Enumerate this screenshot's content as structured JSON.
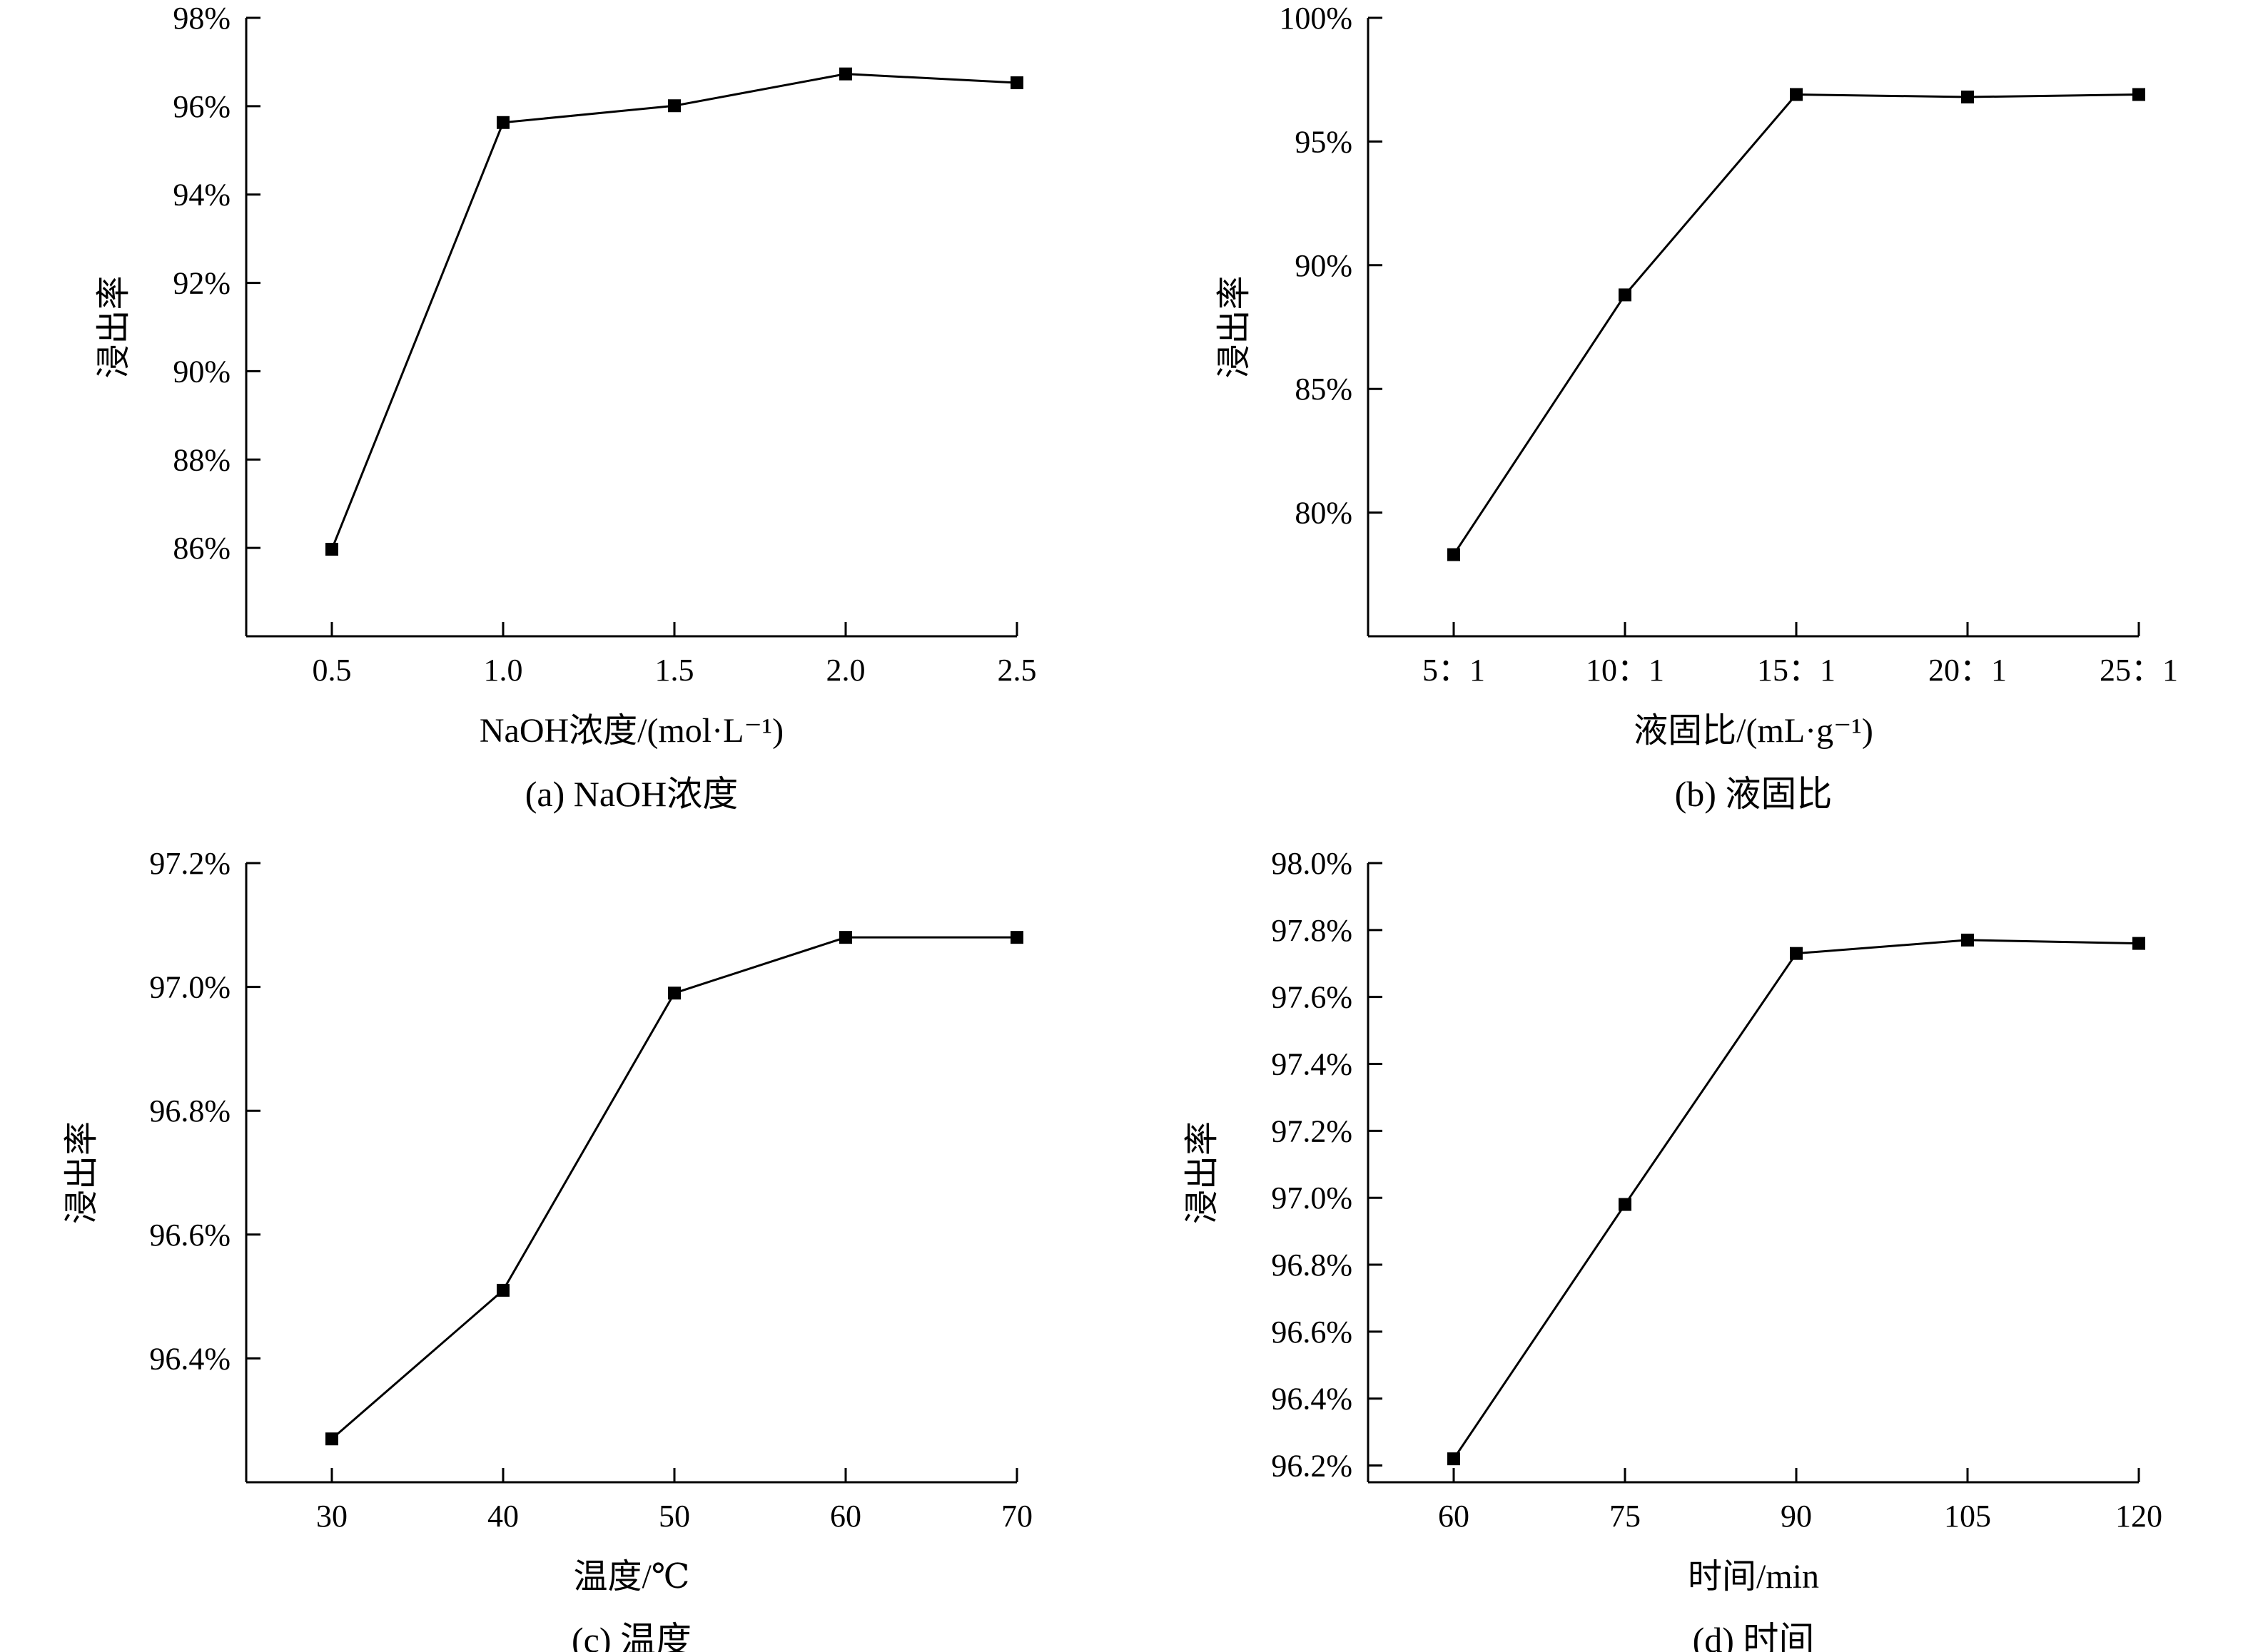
{
  "chart_data": [
    {
      "type": "line",
      "caption": "(a) NaOH浓度",
      "xlabel": "NaOH浓度/(mol·L⁻¹)",
      "ylabel": "浸出率",
      "x": [
        0.5,
        1.0,
        1.5,
        2.0,
        2.5
      ],
      "xtick_labels": [
        "0.5",
        "1.0",
        "1.5",
        "2.0",
        "2.5"
      ],
      "xlim": [
        0.25,
        2.5
      ],
      "y": [
        0.8597,
        0.9563,
        0.9601,
        0.9673,
        0.9653
      ],
      "yticks": [
        0.86,
        0.88,
        0.9,
        0.92,
        0.94,
        0.96,
        0.98
      ],
      "ytick_labels": [
        "86%",
        "88%",
        "90%",
        "92%",
        "94%",
        "96%",
        "98%"
      ],
      "ylim": [
        0.84,
        0.98
      ],
      "marker": "square",
      "grid": false,
      "color": "#000000"
    },
    {
      "type": "line",
      "caption": "(b) 液固比",
      "xlabel": "液固比/(mL·g⁻¹)",
      "ylabel": "浸出率",
      "x": [
        5,
        10,
        15,
        20,
        25
      ],
      "xtick_labels": [
        "5：1",
        "10：1",
        "15：1",
        "20：1",
        "25：1"
      ],
      "xlim": [
        2.5,
        25
      ],
      "y": [
        0.783,
        0.888,
        0.969,
        0.968,
        0.969
      ],
      "yticks": [
        0.8,
        0.85,
        0.9,
        0.95,
        1.0
      ],
      "ytick_labels": [
        "80%",
        "85%",
        "90%",
        "95%",
        "100%"
      ],
      "ylim": [
        0.75,
        1.0
      ],
      "marker": "square",
      "grid": false,
      "color": "#000000"
    },
    {
      "type": "line",
      "caption": "(c) 温度",
      "xlabel": "温度/℃",
      "ylabel": "浸出率",
      "x": [
        30,
        40,
        50,
        60,
        70
      ],
      "xtick_labels": [
        "30",
        "40",
        "50",
        "60",
        "70"
      ],
      "xlim": [
        25,
        70
      ],
      "y": [
        0.9627,
        0.9651,
        0.9699,
        0.9708,
        0.9708
      ],
      "yticks": [
        0.964,
        0.966,
        0.968,
        0.97,
        0.972
      ],
      "ytick_labels": [
        "96.4%",
        "96.6%",
        "96.8%",
        "97.0%",
        "97.2%"
      ],
      "ylim": [
        0.962,
        0.972
      ],
      "marker": "square",
      "grid": false,
      "color": "#000000"
    },
    {
      "type": "line",
      "caption": "(d) 时间",
      "xlabel": "时间/min",
      "ylabel": "浸出率",
      "x": [
        60,
        75,
        90,
        105,
        120
      ],
      "xtick_labels": [
        "60",
        "75",
        "90",
        "105",
        "120"
      ],
      "xlim": [
        52.5,
        120
      ],
      "y": [
        0.9622,
        0.9698,
        0.9773,
        0.9777,
        0.9776
      ],
      "yticks": [
        0.962,
        0.964,
        0.966,
        0.968,
        0.97,
        0.972,
        0.974,
        0.976,
        0.978,
        0.98
      ],
      "ytick_labels": [
        "96.2%",
        "96.4%",
        "96.6%",
        "96.8%",
        "97.0%",
        "97.2%",
        "97.4%",
        "97.6%",
        "97.8%",
        "98.0%"
      ],
      "ylim": [
        0.9615,
        0.98
      ],
      "marker": "square",
      "grid": false,
      "color": "#000000"
    }
  ]
}
